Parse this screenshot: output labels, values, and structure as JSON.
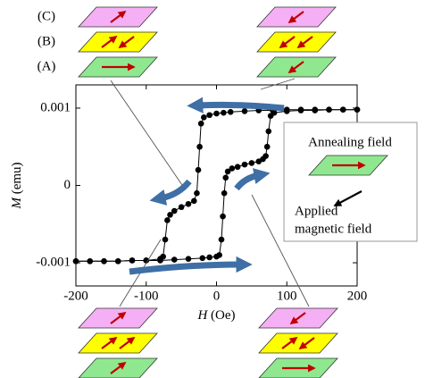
{
  "chart_data": {
    "type": "line",
    "x_label_symbol": "H",
    "x_label_unit": "(Oe)",
    "y_label_symbol": "M",
    "y_label_unit": "(emu)",
    "xlim": [
      -200,
      200
    ],
    "ylim": [
      -0.0013,
      0.0013
    ],
    "xticks": [
      -200,
      -100,
      0,
      100,
      200
    ],
    "yticks": [
      -0.001,
      0,
      0.001
    ],
    "marker": "circle",
    "series": [
      {
        "color": "#000000",
        "x": [
          200,
          180,
          160,
          140,
          120,
          100,
          80,
          60,
          40,
          20,
          10,
          0,
          -10,
          -18,
          -22,
          -24,
          -26,
          -28,
          -32,
          -40,
          -50,
          -60,
          -66,
          -70,
          -73,
          -76,
          -80,
          -100,
          -120,
          -140,
          -160,
          -180,
          -200
        ],
        "values": [
          0.00098,
          0.00098,
          0.00098,
          0.00098,
          0.00098,
          0.00098,
          0.00097,
          0.00097,
          0.00096,
          0.00095,
          0.00094,
          0.00093,
          0.00091,
          0.00088,
          0.0008,
          0.0005,
          0.0002,
          -0.0001,
          -0.0002,
          -0.00024,
          -0.00028,
          -0.00033,
          -0.00038,
          -0.00045,
          -0.0007,
          -0.00092,
          -0.00095,
          -0.00097,
          -0.00097,
          -0.00098,
          -0.00098,
          -0.00098,
          -0.00098
        ]
      },
      {
        "color": "#000000",
        "x": [
          -200,
          -180,
          -160,
          -140,
          -120,
          -100,
          -80,
          -60,
          -40,
          -20,
          -10,
          0,
          4,
          7,
          9,
          11,
          13,
          16,
          22,
          30,
          40,
          50,
          60,
          66,
          70,
          72,
          74,
          77,
          82,
          100,
          120,
          140,
          160,
          180,
          200
        ],
        "values": [
          -0.00098,
          -0.00098,
          -0.00098,
          -0.00098,
          -0.00097,
          -0.00097,
          -0.00097,
          -0.00096,
          -0.00095,
          -0.00094,
          -0.00093,
          -0.00092,
          -0.0009,
          -0.0007,
          -0.0004,
          -0.0001,
          0.0001,
          0.00018,
          0.00022,
          0.00024,
          0.00027,
          0.00029,
          0.00031,
          0.00034,
          0.00038,
          0.0005,
          0.0007,
          0.0009,
          0.00094,
          0.00096,
          0.00097,
          0.00097,
          0.00098,
          0.00098,
          0.00098
        ]
      }
    ],
    "annotations": {
      "layers": [
        "(A)",
        "(B)",
        "(C)"
      ],
      "annealing": "Annealing field",
      "applied": [
        "Applied",
        "magnetic field"
      ]
    }
  }
}
